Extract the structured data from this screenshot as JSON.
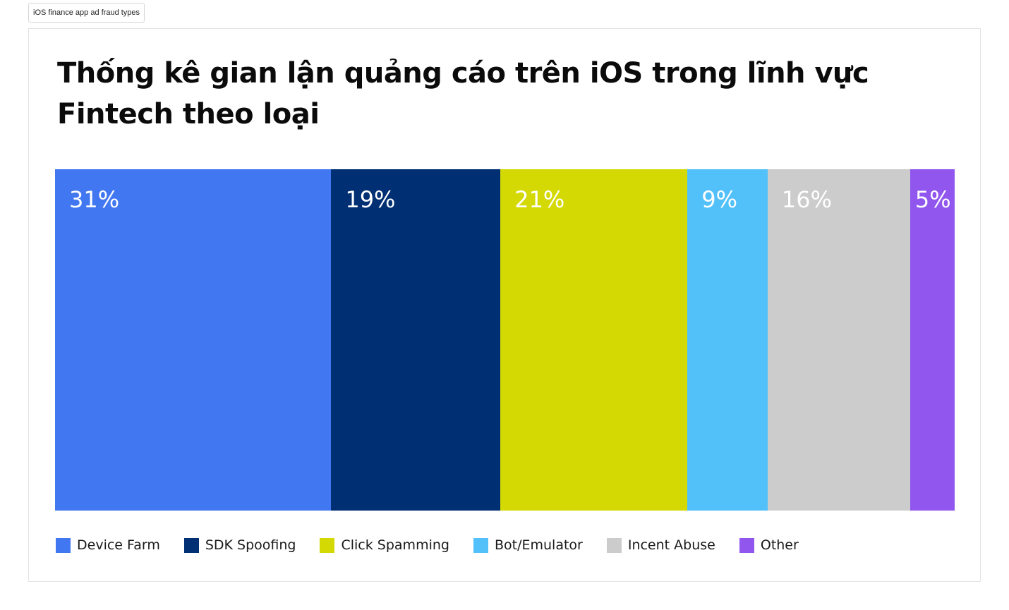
{
  "tab": {
    "label": "iOS finance app ad fraud types"
  },
  "chart_data": {
    "type": "bar",
    "stacked": "100%",
    "orientation": "vertical-segments",
    "title": "Thống kê gian lận quảng cáo trên iOS trong lĩnh vực Fintech theo loại",
    "categories": [
      "Device Farm",
      "SDK Spoofing",
      "Click Spamming",
      "Bot/Emulator",
      "Incent Abuse",
      "Other"
    ],
    "values": [
      31,
      19,
      21,
      9,
      16,
      5
    ],
    "value_labels": [
      "31%",
      "19%",
      "21%",
      "9%",
      "16%",
      "5%"
    ],
    "colors": [
      "#4277f2",
      "#002f73",
      "#d4d904",
      "#52c1f9",
      "#cccccc",
      "#9156ee"
    ],
    "legend": "bottom-left",
    "grid": false
  }
}
